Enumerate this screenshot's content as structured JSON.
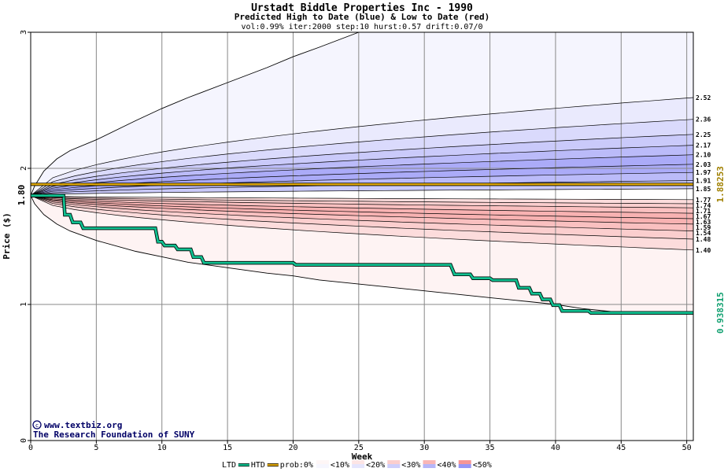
{
  "colors": {
    "htd_line": "#10c090",
    "prob_line": "#e0a800",
    "up_band": "#5050f0",
    "down_band": "#f05050",
    "grid": "#888888",
    "credit": "#000066",
    "current_label": "#000000",
    "prob_label": "#a08000",
    "ltd_label": "#10a070"
  },
  "chart_data": {
    "type": "line",
    "title": "Urstadt Biddle Properties Inc - 1990",
    "subtitle": "Predicted High to Date (blue) &  Low to Date (red)",
    "params": "vol:0.99% iter:2000 step:10 hurst:0.57 drift:0.07/0",
    "xlabel": "Week",
    "ylabel": "Price ($)",
    "xlim": [
      0,
      50.5
    ],
    "ylim": [
      0,
      3
    ],
    "x_ticks": [
      0,
      5,
      10,
      15,
      20,
      25,
      30,
      35,
      40,
      45,
      50
    ],
    "y_ticks": [
      0,
      1,
      2,
      3
    ],
    "grid": true,
    "start_price": 1.8,
    "start_label": "1.80",
    "prob_level": 1.88253,
    "prob_label": "1.88253",
    "ltd_level": 0.938315,
    "ltd_label": "0.938315",
    "high_percentile_levels": [
      2.52,
      2.36,
      2.25,
      2.17,
      2.1,
      2.03,
      1.97,
      1.91,
      1.85
    ],
    "high_percentile_labels": [
      "2.52",
      "2.36",
      "2.25",
      "2.17",
      "2.10",
      "2.03",
      "1.97",
      "1.91",
      "1.85"
    ],
    "low_percentile_levels": [
      1.77,
      1.74,
      1.71,
      1.67,
      1.63,
      1.59,
      1.54,
      1.48,
      1.4
    ],
    "low_percentile_labels": [
      "1.77",
      "1.74",
      "1.71",
      "1.67",
      "1.63",
      "1.59",
      "1.54",
      "1.48",
      "1.40"
    ],
    "outer_upper_envelope": {
      "x": [
        0,
        0.3,
        1,
        2,
        3,
        5,
        8,
        10,
        12,
        15,
        18,
        20,
        22,
        25
      ],
      "y": [
        1.8,
        1.87,
        1.98,
        2.07,
        2.13,
        2.21,
        2.35,
        2.44,
        2.52,
        2.63,
        2.74,
        2.82,
        2.89,
        3.0
      ]
    },
    "outer_lower_envelope": {
      "x": [
        0,
        0.3,
        1,
        2,
        3,
        5,
        8,
        10,
        12,
        15,
        18,
        20,
        22,
        25,
        28,
        30,
        33,
        35,
        38,
        40,
        42,
        44,
        46
      ],
      "y": [
        1.8,
        1.74,
        1.66,
        1.59,
        1.54,
        1.47,
        1.39,
        1.35,
        1.31,
        1.27,
        1.23,
        1.21,
        1.18,
        1.15,
        1.12,
        1.1,
        1.07,
        1.05,
        1.02,
        1.0,
        0.97,
        0.95,
        0.93
      ]
    },
    "htd_series": {
      "name": "HTD",
      "x": [
        0,
        2.5,
        2.6,
        3.0,
        3.2,
        3.8,
        4.0,
        9.5,
        9.7,
        10.0,
        10.2,
        11.0,
        11.2,
        12.2,
        12.4,
        13.0,
        13.2,
        20.0,
        20.2,
        32.0,
        32.3,
        33.5,
        33.7,
        35.0,
        35.2,
        37.0,
        37.2,
        38.0,
        38.2,
        38.8,
        39.0,
        39.6,
        39.8,
        40.3,
        40.5,
        42.5,
        42.7,
        50.5
      ],
      "y": [
        1.8,
        1.8,
        1.7,
        1.7,
        1.66,
        1.66,
        1.63,
        1.63,
        1.56,
        1.56,
        1.54,
        1.54,
        1.52,
        1.52,
        1.48,
        1.48,
        1.45,
        1.45,
        1.44,
        1.44,
        1.39,
        1.39,
        1.37,
        1.37,
        1.36,
        1.36,
        1.32,
        1.32,
        1.29,
        1.29,
        1.26,
        1.26,
        1.23,
        1.23,
        1.2,
        1.2,
        1.19,
        1.19
      ]
    },
    "legend": [
      "LTD",
      "HTD",
      "prob:0%",
      "<10%",
      "<20%",
      "<30%",
      "<40%",
      "<50%"
    ]
  },
  "credits": {
    "site": "www.textbiz.org",
    "org": "The Research Foundation of SUNY"
  }
}
